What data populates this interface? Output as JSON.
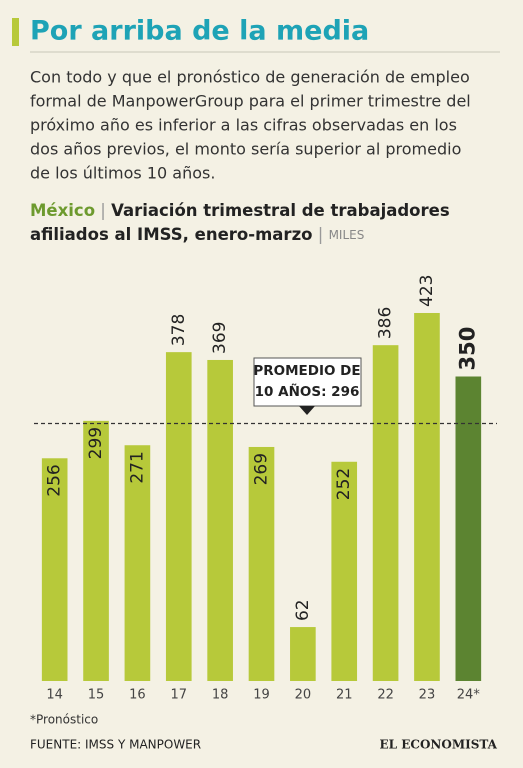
{
  "chart_data": {
    "type": "bar",
    "title": "Por arriba de la media",
    "description": [
      "Con todo y que el pronóstico de generación de empleo",
      "formal de ManpowerGroup para el primer trimestre del",
      "próximo año es inferior a las cifras observadas en los",
      "dos años previos, el monto sería superior al promedio",
      "de los últimos 10 años."
    ],
    "country": "México",
    "subtitle": [
      "Variación trimestral de trabajadores",
      "afiliados al IMSS, enero-marzo"
    ],
    "unit": "MILES",
    "categories": [
      "14",
      "15",
      "16",
      "17",
      "18",
      "19",
      "20",
      "21",
      "22",
      "23",
      "24*"
    ],
    "values": [
      256,
      299,
      271,
      378,
      369,
      269,
      62,
      252,
      386,
      423,
      350
    ],
    "colors": [
      "#b7c93a",
      "#b7c93a",
      "#b7c93a",
      "#b7c93a",
      "#b7c93a",
      "#b7c93a",
      "#b7c93a",
      "#b7c93a",
      "#b7c93a",
      "#b7c93a",
      "#5c8431"
    ],
    "ylim": [
      0,
      500
    ],
    "average": 296,
    "annotation": [
      "PROMEDIO DE",
      "10 AÑOS: 296"
    ],
    "footnote": "*Pronóstico",
    "source": "FUENTE: IMSS Y MANPOWER",
    "logo": "EL ECONOMISTA"
  }
}
